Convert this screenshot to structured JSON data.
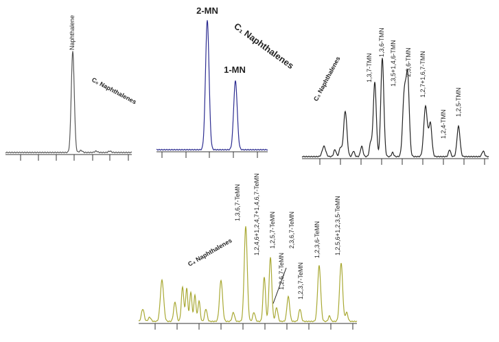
{
  "panels": [
    {
      "title": "C₀ Naphthalenes",
      "labels": [
        "Naphthalene"
      ]
    },
    {
      "title": "C₁ Naphthalenes",
      "labels": [
        "2-MN",
        "1-MN"
      ]
    },
    {
      "title": "C₃ Naphthalenes",
      "labels": [
        "1,3,7-TMN",
        "1,3,6-TMN",
        "1,3,5+1,4,6-TMN",
        "2,3,6-TMN",
        "1,2,7+1,6,7-TMN",
        "1,2,4-TMN",
        "1,2,5-TMN"
      ]
    },
    {
      "title": "C₄ Naphthalenes",
      "labels": [
        "1,3,6,7-TeMN",
        "1,2,4,6+1,2,4,7+1,4,6,7-TeMN",
        "1,2,5,7-TeMN",
        "2,3,6,7-TeMN",
        "1,2,6,7-TeMN",
        "1,2,3,7-TeMN",
        "1,2,3,6-TeMN",
        "1,2,5,6+1,2,3,5-TeMN"
      ]
    }
  ]
}
